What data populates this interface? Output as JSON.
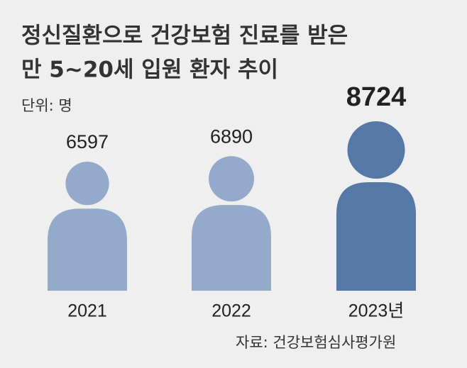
{
  "chart_data": {
    "type": "pictogram",
    "title": [
      "정신질환으로 건강보험 진료를 받은",
      "만 5~20세 입원 환자 추이"
    ],
    "unit": "단위: 명",
    "source": "자료: 건강보험심사평가원",
    "categories": [
      "2021",
      "2022",
      "2023년"
    ],
    "values": [
      6597,
      6890,
      8724
    ],
    "colors": [
      "#94aacb",
      "#94aacb",
      "#5578a6"
    ]
  }
}
